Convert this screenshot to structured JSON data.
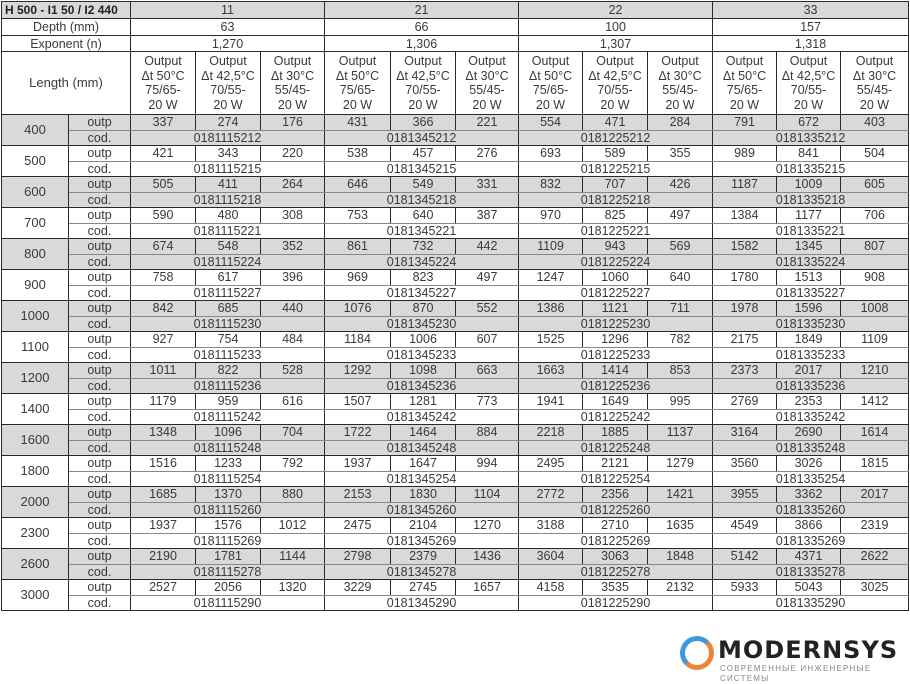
{
  "header": {
    "title": "H 500 - I1 50 / I2 440",
    "depth_label": "Depth (mm)",
    "exponent_label": "Exponent (n)",
    "length_label": "Length (mm)",
    "output_headers": [
      "Output\nΔt 50°C\n75/65-\n20 W",
      "Output\nΔt 42,5°C\n70/55-\n20 W",
      "Output\nΔt 30°C\n55/45-\n20 W"
    ],
    "types": [
      {
        "name": "11",
        "depth": "63",
        "exponent": "1,270"
      },
      {
        "name": "21",
        "depth": "66",
        "exponent": "1,306"
      },
      {
        "name": "22",
        "depth": "100",
        "exponent": "1,307"
      },
      {
        "name": "33",
        "depth": "157",
        "exponent": "1,318"
      }
    ]
  },
  "row_labels": {
    "output": "outp",
    "code": "cod."
  },
  "rows": [
    {
      "length": "400",
      "values": [
        [
          "337",
          "274",
          "176"
        ],
        [
          "431",
          "366",
          "221"
        ],
        [
          "554",
          "471",
          "284"
        ],
        [
          "791",
          "672",
          "403"
        ]
      ],
      "codes": [
        "0181115212",
        "0181345212",
        "0181225212",
        "0181335212"
      ]
    },
    {
      "length": "500",
      "values": [
        [
          "421",
          "343",
          "220"
        ],
        [
          "538",
          "457",
          "276"
        ],
        [
          "693",
          "589",
          "355"
        ],
        [
          "989",
          "841",
          "504"
        ]
      ],
      "codes": [
        "0181115215",
        "0181345215",
        "0181225215",
        "0181335215"
      ]
    },
    {
      "length": "600",
      "values": [
        [
          "505",
          "411",
          "264"
        ],
        [
          "646",
          "549",
          "331"
        ],
        [
          "832",
          "707",
          "426"
        ],
        [
          "1187",
          "1009",
          "605"
        ]
      ],
      "codes": [
        "0181115218",
        "0181345218",
        "0181225218",
        "0181335218"
      ]
    },
    {
      "length": "700",
      "values": [
        [
          "590",
          "480",
          "308"
        ],
        [
          "753",
          "640",
          "387"
        ],
        [
          "970",
          "825",
          "497"
        ],
        [
          "1384",
          "1177",
          "706"
        ]
      ],
      "codes": [
        "0181115221",
        "0181345221",
        "0181225221",
        "0181335221"
      ]
    },
    {
      "length": "800",
      "values": [
        [
          "674",
          "548",
          "352"
        ],
        [
          "861",
          "732",
          "442"
        ],
        [
          "1109",
          "943",
          "569"
        ],
        [
          "1582",
          "1345",
          "807"
        ]
      ],
      "codes": [
        "0181115224",
        "0181345224",
        "0181225224",
        "0181335224"
      ]
    },
    {
      "length": "900",
      "values": [
        [
          "758",
          "617",
          "396"
        ],
        [
          "969",
          "823",
          "497"
        ],
        [
          "1247",
          "1060",
          "640"
        ],
        [
          "1780",
          "1513",
          "908"
        ]
      ],
      "codes": [
        "0181115227",
        "0181345227",
        "0181225227",
        "0181335227"
      ]
    },
    {
      "length": "1000",
      "values": [
        [
          "842",
          "685",
          "440"
        ],
        [
          "1076",
          "870",
          "552"
        ],
        [
          "1386",
          "1121",
          "711"
        ],
        [
          "1978",
          "1596",
          "1008"
        ]
      ],
      "codes": [
        "0181115230",
        "0181345230",
        "0181225230",
        "0181335230"
      ]
    },
    {
      "length": "1100",
      "values": [
        [
          "927",
          "754",
          "484"
        ],
        [
          "1184",
          "1006",
          "607"
        ],
        [
          "1525",
          "1296",
          "782"
        ],
        [
          "2175",
          "1849",
          "1109"
        ]
      ],
      "codes": [
        "0181115233",
        "0181345233",
        "0181225233",
        "0181335233"
      ]
    },
    {
      "length": "1200",
      "values": [
        [
          "1011",
          "822",
          "528"
        ],
        [
          "1292",
          "1098",
          "663"
        ],
        [
          "1663",
          "1414",
          "853"
        ],
        [
          "2373",
          "2017",
          "1210"
        ]
      ],
      "codes": [
        "0181115236",
        "0181345236",
        "0181225236",
        "0181335236"
      ]
    },
    {
      "length": "1400",
      "values": [
        [
          "1179",
          "959",
          "616"
        ],
        [
          "1507",
          "1281",
          "773"
        ],
        [
          "1941",
          "1649",
          "995"
        ],
        [
          "2769",
          "2353",
          "1412"
        ]
      ],
      "codes": [
        "0181115242",
        "0181345242",
        "0181225242",
        "0181335242"
      ]
    },
    {
      "length": "1600",
      "values": [
        [
          "1348",
          "1096",
          "704"
        ],
        [
          "1722",
          "1464",
          "884"
        ],
        [
          "2218",
          "1885",
          "1137"
        ],
        [
          "3164",
          "2690",
          "1614"
        ]
      ],
      "codes": [
        "0181115248",
        "0181345248",
        "0181225248",
        "0181335248"
      ]
    },
    {
      "length": "1800",
      "values": [
        [
          "1516",
          "1233",
          "792"
        ],
        [
          "1937",
          "1647",
          "994"
        ],
        [
          "2495",
          "2121",
          "1279"
        ],
        [
          "3560",
          "3026",
          "1815"
        ]
      ],
      "codes": [
        "0181115254",
        "0181345254",
        "0181225254",
        "0181335254"
      ]
    },
    {
      "length": "2000",
      "values": [
        [
          "1685",
          "1370",
          "880"
        ],
        [
          "2153",
          "1830",
          "1104"
        ],
        [
          "2772",
          "2356",
          "1421"
        ],
        [
          "3955",
          "3362",
          "2017"
        ]
      ],
      "codes": [
        "0181115260",
        "0181345260",
        "0181225260",
        "0181335260"
      ]
    },
    {
      "length": "2300",
      "values": [
        [
          "1937",
          "1576",
          "1012"
        ],
        [
          "2475",
          "2104",
          "1270"
        ],
        [
          "3188",
          "2710",
          "1635"
        ],
        [
          "4549",
          "3866",
          "2319"
        ]
      ],
      "codes": [
        "0181115269",
        "0181345269",
        "0181225269",
        "0181335269"
      ]
    },
    {
      "length": "2600",
      "values": [
        [
          "2190",
          "1781",
          "1144"
        ],
        [
          "2798",
          "2379",
          "1436"
        ],
        [
          "3604",
          "3063",
          "1848"
        ],
        [
          "5142",
          "4371",
          "2622"
        ]
      ],
      "codes": [
        "0181115278",
        "0181345278",
        "0181225278",
        "0181335278"
      ]
    },
    {
      "length": "3000",
      "values": [
        [
          "2527",
          "2056",
          "1320"
        ],
        [
          "3229",
          "2745",
          "1657"
        ],
        [
          "4158",
          "3535",
          "2132"
        ],
        [
          "5933",
          "5043",
          "3025"
        ]
      ],
      "codes": [
        "0181115290",
        "0181345290",
        "0181225290",
        "0181335290"
      ]
    }
  ],
  "watermark": {
    "brand": "MODERNSYS",
    "tagline": "СОВРЕМЕННЫЕ ИНЖЕНЕРНЫЕ СИСТЕМЫ"
  },
  "colors": {
    "header_grey": "#d9d9d9",
    "logo_blue": "#2a8fd6",
    "logo_orange": "#e9772b"
  }
}
